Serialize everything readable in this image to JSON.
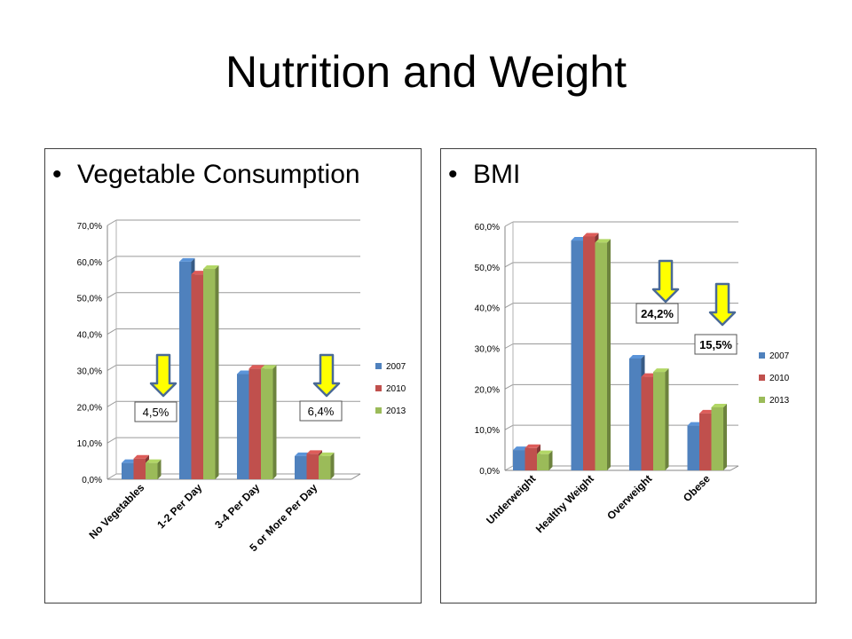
{
  "title": "Nutrition and Weight",
  "colors": {
    "2007": "#4f81bd",
    "2010": "#c0504d",
    "2013": "#9bbb59"
  },
  "chart_data": [
    {
      "type": "bar",
      "bullet": "Vegetable Consumption",
      "categories": [
        "No Vegetables",
        "1-2 Per Day",
        "3-4 Per Day",
        "5 or More Per Day"
      ],
      "series": [
        {
          "name": "2007",
          "values": [
            4.5,
            60.0,
            29.0,
            6.4
          ]
        },
        {
          "name": "2010",
          "values": [
            5.7,
            56.5,
            30.5,
            7.0
          ]
        },
        {
          "name": "2013",
          "values": [
            4.5,
            58.0,
            30.5,
            6.4
          ]
        }
      ],
      "ylim": [
        0,
        70
      ],
      "yticks": [
        "0,0%",
        "10,0%",
        "20,0%",
        "30,0%",
        "40,0%",
        "50,0%",
        "60,0%",
        "70,0%"
      ],
      "legend": "right",
      "annotations": [
        "4,5%",
        "6,4%"
      ]
    },
    {
      "type": "bar",
      "bullet": "BMI",
      "categories": [
        "Underweight",
        "Healthy Weight",
        "Overweight",
        "Obese"
      ],
      "series": [
        {
          "name": "2007",
          "values": [
            5.0,
            56.5,
            27.5,
            11.0
          ]
        },
        {
          "name": "2010",
          "values": [
            5.5,
            57.5,
            23.0,
            14.0
          ]
        },
        {
          "name": "2013",
          "values": [
            4.0,
            56.0,
            24.2,
            15.5
          ]
        }
      ],
      "ylim": [
        0,
        60
      ],
      "yticks": [
        "0,0%",
        "10,0%",
        "20,0%",
        "30,0%",
        "40,0%",
        "50,0%",
        "60,0%"
      ],
      "legend": "right",
      "annotations": [
        "24,2%",
        "15,5%"
      ]
    }
  ]
}
